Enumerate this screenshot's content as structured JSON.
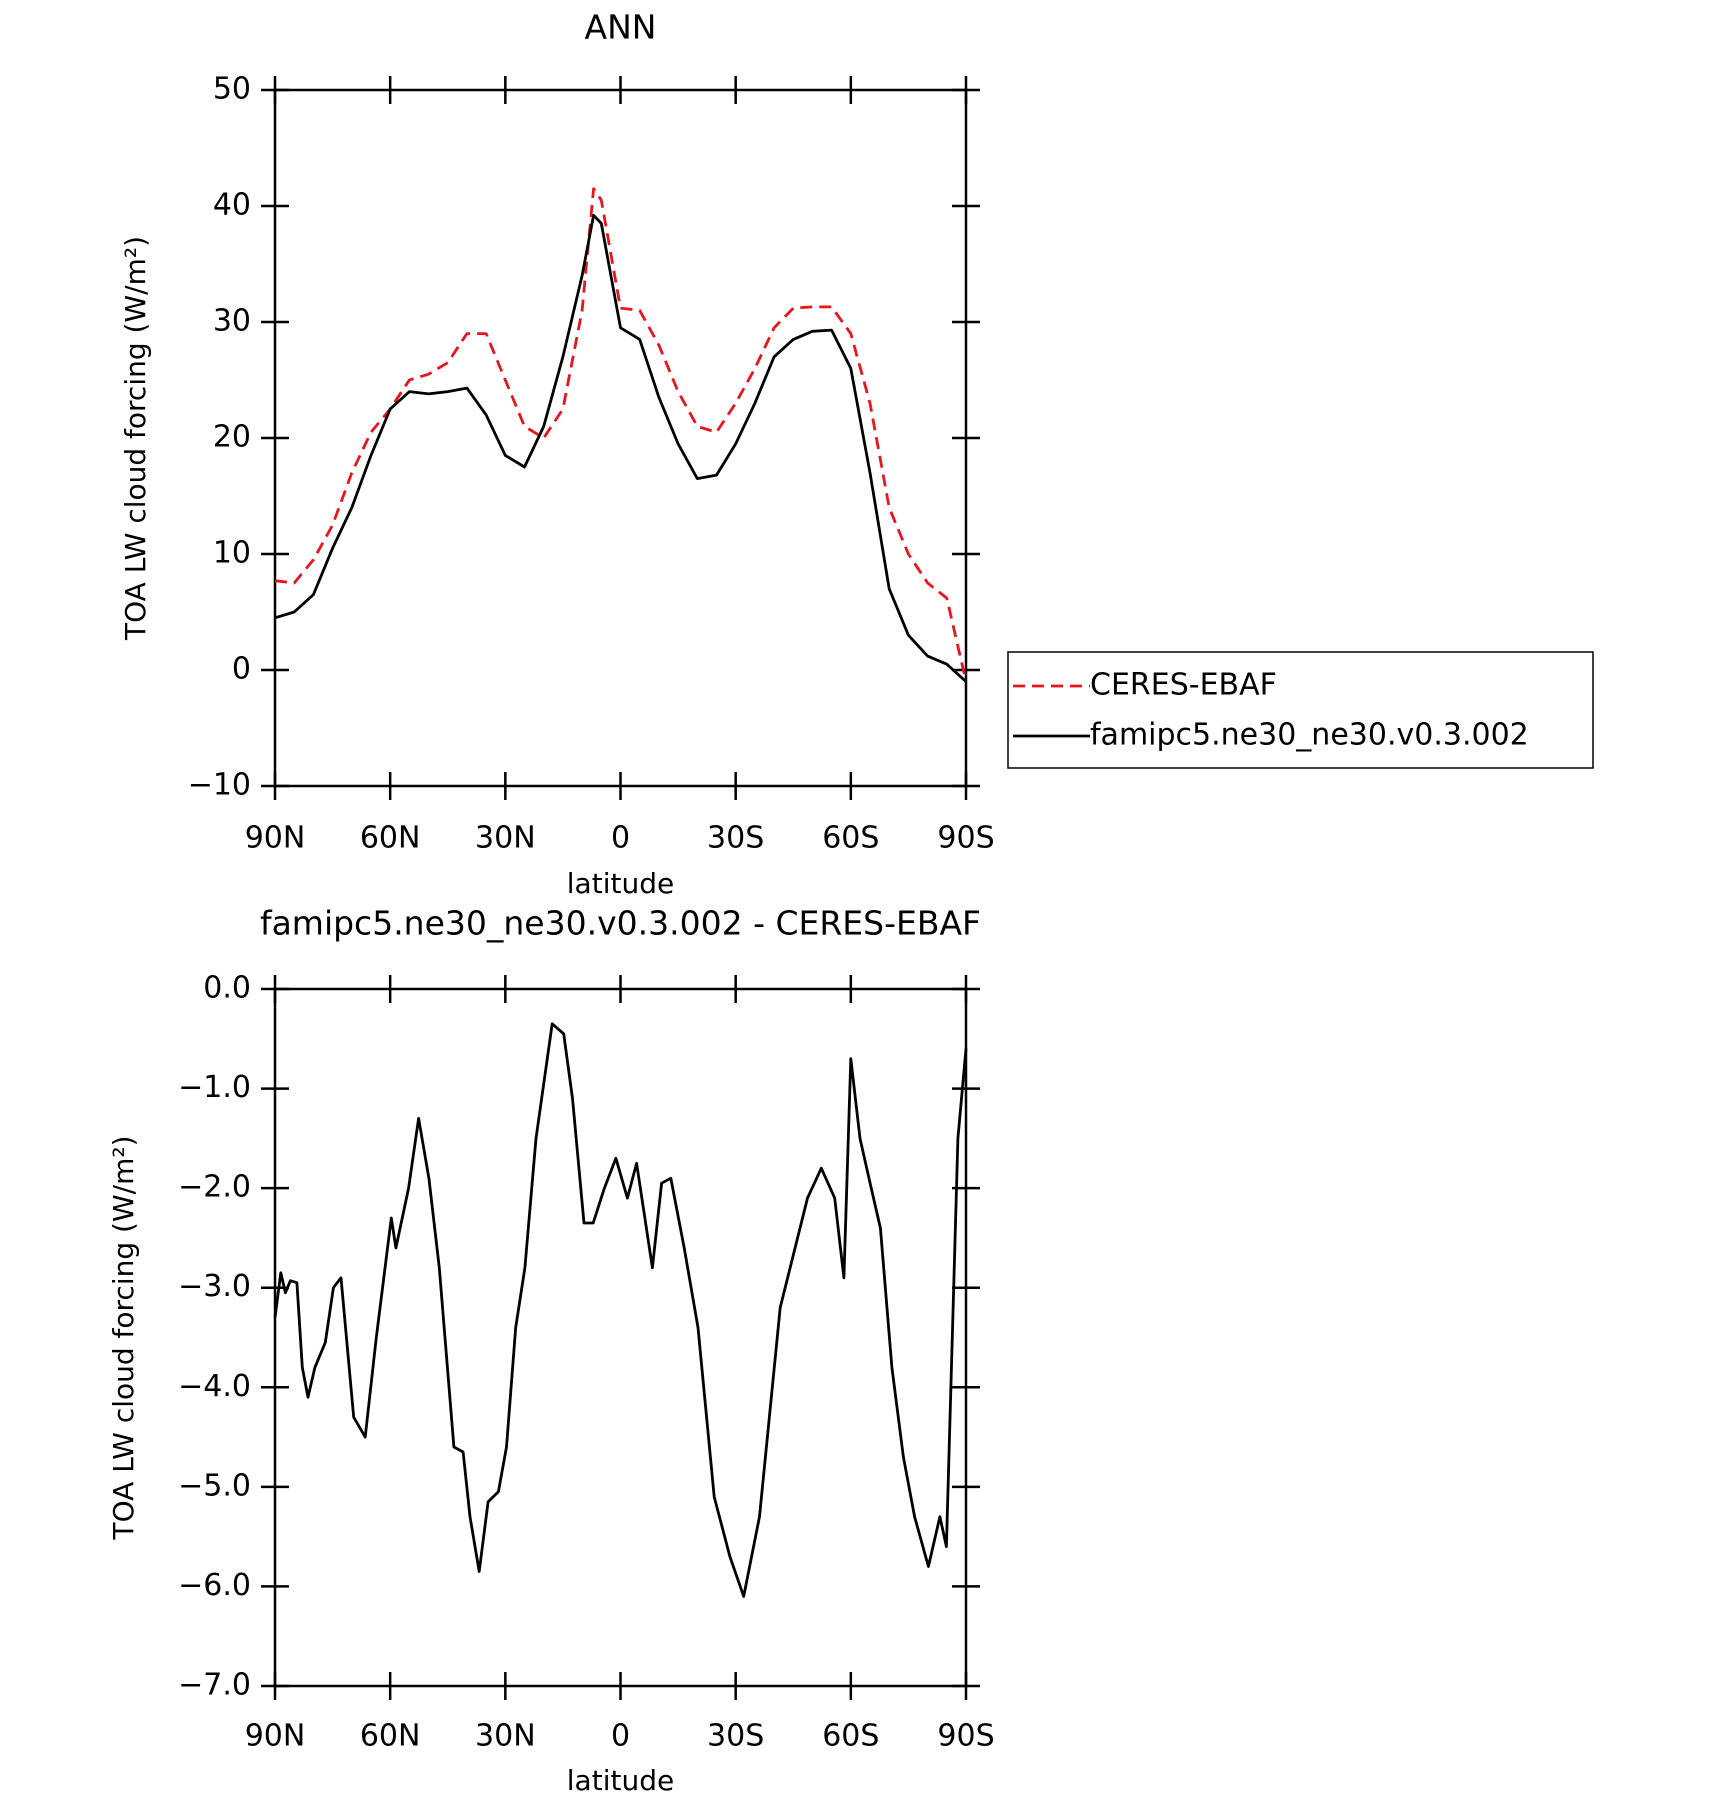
{
  "chart_data": [
    {
      "type": "line",
      "title": "ANN",
      "x_label": "latitude",
      "y_label": "TOA LW cloud forcing (W/m²)",
      "xlim": [
        90,
        -90
      ],
      "xticks": [
        {
          "value": 90,
          "label": "90N"
        },
        {
          "value": 60,
          "label": "60N"
        },
        {
          "value": 30,
          "label": "30N"
        },
        0,
        {
          "value": -30,
          "label": "30S"
        },
        {
          "value": -60,
          "label": "60S"
        },
        {
          "value": -90,
          "label": "90S"
        }
      ],
      "ylim": [
        -10,
        50
      ],
      "yticks": [
        {
          "value": -10,
          "label": "−10"
        },
        0,
        10,
        20,
        30,
        40,
        50
      ],
      "legend": "right",
      "x": [
        90,
        85,
        80,
        75,
        70,
        65,
        60,
        55,
        50,
        45,
        40,
        35,
        30,
        25,
        20,
        15,
        10,
        7,
        5,
        0,
        -5,
        -10,
        -15,
        -20,
        -25,
        -30,
        -35,
        -40,
        -45,
        -50,
        -55,
        -60,
        -65,
        -70,
        -75,
        -80,
        -85,
        -90
      ],
      "series": [
        {
          "name": "CERES-EBAF",
          "color": "#e8141e",
          "style": "dashed",
          "values": [
            7.7,
            7.5,
            9.5,
            12.5,
            17,
            20.5,
            22.5,
            25,
            25.5,
            26.5,
            29,
            29,
            25,
            21,
            20,
            22.5,
            31,
            41.5,
            40.5,
            31.2,
            31,
            28,
            24,
            21,
            20.5,
            23,
            26,
            29.5,
            31.2,
            31.3,
            31.3,
            29,
            23,
            14,
            10,
            7.5,
            6.2,
            -1
          ]
        },
        {
          "name": "famipc5.ne30_ne30.v0.3.002",
          "color": "#000000",
          "style": "solid",
          "values": [
            4.5,
            5,
            6.5,
            10.5,
            14,
            18.5,
            22.5,
            24,
            23.8,
            24,
            24.3,
            22,
            18.5,
            17.5,
            21,
            27,
            34,
            39.2,
            38.5,
            29.5,
            28.5,
            23.5,
            19.5,
            16.5,
            16.8,
            19.5,
            23,
            27,
            28.5,
            29.2,
            29.3,
            26,
            17,
            7,
            3,
            1.2,
            0.5,
            -1
          ]
        }
      ]
    },
    {
      "type": "line",
      "title": "famipc5.ne30_ne30.v0.3.002 - CERES-EBAF",
      "x_label": "latitude",
      "y_label": "TOA LW cloud forcing (W/m²)",
      "xlim": [
        90,
        -90
      ],
      "xticks": [
        {
          "value": 90,
          "label": "90N"
        },
        {
          "value": 60,
          "label": "60N"
        },
        {
          "value": 30,
          "label": "30N"
        },
        0,
        {
          "value": -30,
          "label": "30S"
        },
        {
          "value": -60,
          "label": "60S"
        },
        {
          "value": -90,
          "label": "90S"
        }
      ],
      "ylim": [
        -7,
        0
      ],
      "yticks": [
        {
          "value": -7,
          "label": "−7.0"
        },
        {
          "value": -6,
          "label": "−6.0"
        },
        {
          "value": -5,
          "label": "−5.0"
        },
        {
          "value": -4,
          "label": "−4.0"
        },
        {
          "value": -3,
          "label": "−3.0"
        },
        {
          "value": -2,
          "label": "−2.0"
        },
        {
          "value": -1,
          "label": "−1.0"
        },
        {
          "value": 0,
          "label": "0.0"
        }
      ],
      "x": [
        90,
        88.5,
        87.3,
        86,
        84.3,
        82.9,
        81.4,
        79.6,
        76.9,
        74.8,
        72.8,
        69.5,
        66.5,
        63.6,
        59.7,
        58.5,
        55.2,
        52.6,
        49.9,
        47.2,
        43.4,
        41,
        39.2,
        36.8,
        34.5,
        31.8,
        29.7,
        27.3,
        24.9,
        22,
        17.8,
        14.8,
        12.5,
        9.5,
        7.1,
        4.2,
        1.2,
        -1.8,
        -4.2,
        -8.3,
        -10.7,
        -13.1,
        -16.6,
        -20.2,
        -24.4,
        -28.5,
        -32.1,
        -36.2,
        -41.6,
        -48.7,
        -52.3,
        -55.8,
        -58.2,
        -60,
        -62.4,
        -65.3,
        -67.7,
        -70.7,
        -73.7,
        -76.6,
        -80.2,
        -83.2,
        -84.9,
        -87.9,
        -90
      ],
      "series": [
        {
          "color": "#000000",
          "style": "solid",
          "values": [
            -3.3,
            -2.85,
            -3.05,
            -2.93,
            -2.95,
            -3.8,
            -4.1,
            -3.8,
            -3.55,
            -3.0,
            -2.9,
            -4.3,
            -4.5,
            -3.5,
            -2.3,
            -2.6,
            -2.0,
            -1.3,
            -1.9,
            -2.8,
            -4.6,
            -4.65,
            -5.3,
            -5.85,
            -5.15,
            -5.05,
            -4.6,
            -3.4,
            -2.8,
            -1.5,
            -0.35,
            -0.45,
            -1.1,
            -2.35,
            -2.35,
            -2.0,
            -1.7,
            -2.1,
            -1.75,
            -2.8,
            -1.95,
            -1.9,
            -2.6,
            -3.4,
            -5.1,
            -5.7,
            -6.1,
            -5.3,
            -3.2,
            -2.1,
            -1.8,
            -2.1,
            -2.9,
            -0.7,
            -1.5,
            -2.0,
            -2.4,
            -3.8,
            -4.7,
            -5.3,
            -5.8,
            -5.3,
            -5.6,
            -1.5,
            -0.6
          ]
        }
      ]
    }
  ]
}
